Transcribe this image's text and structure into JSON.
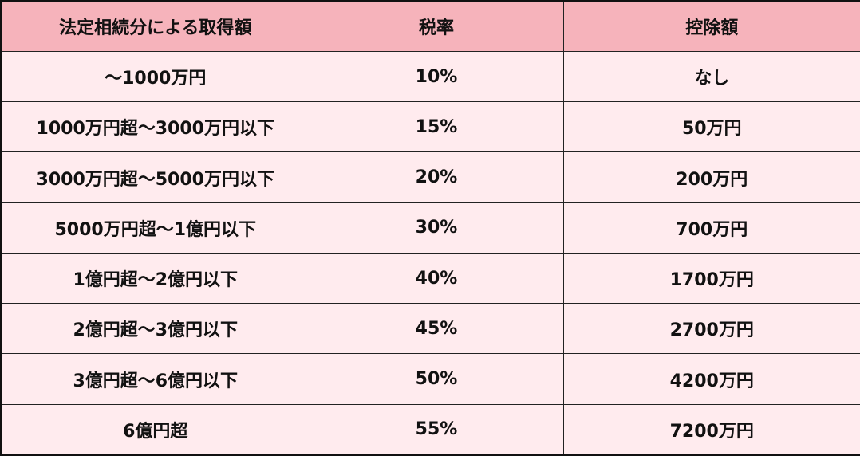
{
  "table": {
    "headers": [
      "法定相続分による取得額",
      "税率",
      "控除額"
    ],
    "rows": [
      [
        "～1000万円",
        "10%",
        "なし"
      ],
      [
        "1000万円超～3000万円以下",
        "15%",
        "50万円"
      ],
      [
        "3000万円超～5000万円以下",
        "20%",
        "200万円"
      ],
      [
        "5000万円超～1億円以下",
        "30%",
        "700万円"
      ],
      [
        "1億円超～2億円以下",
        "40%",
        "1700万円"
      ],
      [
        "2億円超～3億円以下",
        "45%",
        "2700万円"
      ],
      [
        "3億円超～6億円以下",
        "50%",
        "4200万円"
      ],
      [
        "6億円超",
        "55%",
        "7200万円"
      ]
    ]
  },
  "colors": {
    "header_bg": "#f6b3bb",
    "row_bg": "#ffebee",
    "border": "#222222"
  }
}
